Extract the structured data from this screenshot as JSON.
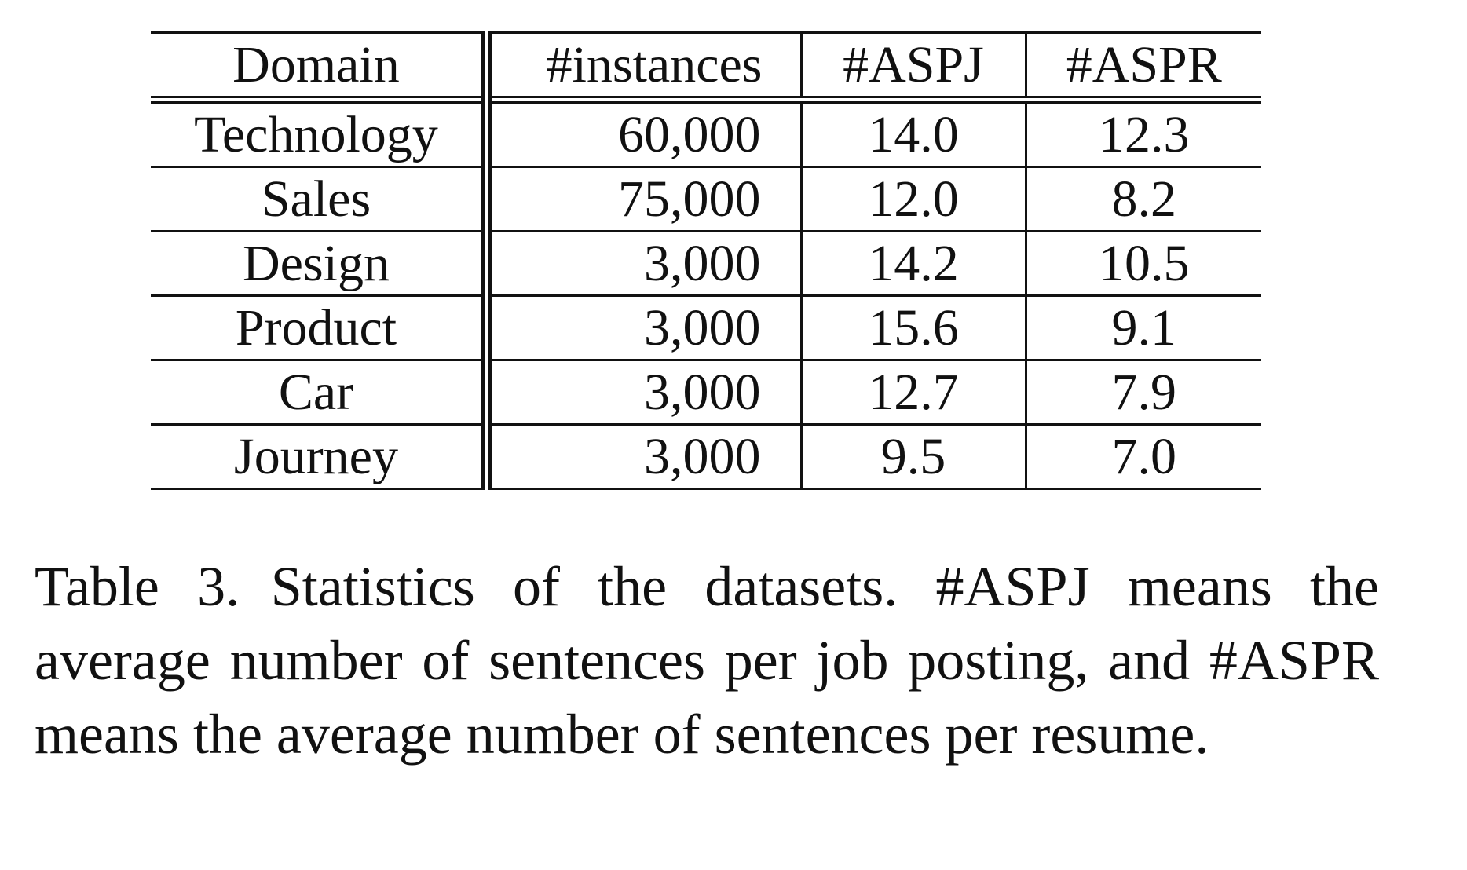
{
  "table": {
    "headers": [
      "Domain",
      "#instances",
      "#ASPJ",
      "#ASPR"
    ],
    "rows": [
      [
        "Technology",
        "60,000",
        "14.0",
        "12.3"
      ],
      [
        "Sales",
        "75,000",
        "12.0",
        "8.2"
      ],
      [
        "Design",
        "3,000",
        "14.2",
        "10.5"
      ],
      [
        "Product",
        "3,000",
        "15.6",
        "9.1"
      ],
      [
        "Car",
        "3,000",
        "12.7",
        "7.9"
      ],
      [
        "Journey",
        "3,000",
        "9.5",
        "7.0"
      ]
    ]
  },
  "caption": {
    "label": "Table 3.",
    "text": "Statistics of the datasets.  #ASPJ means the average number of sentences per job posting, and #ASPR means the average number of sentences per resume."
  }
}
